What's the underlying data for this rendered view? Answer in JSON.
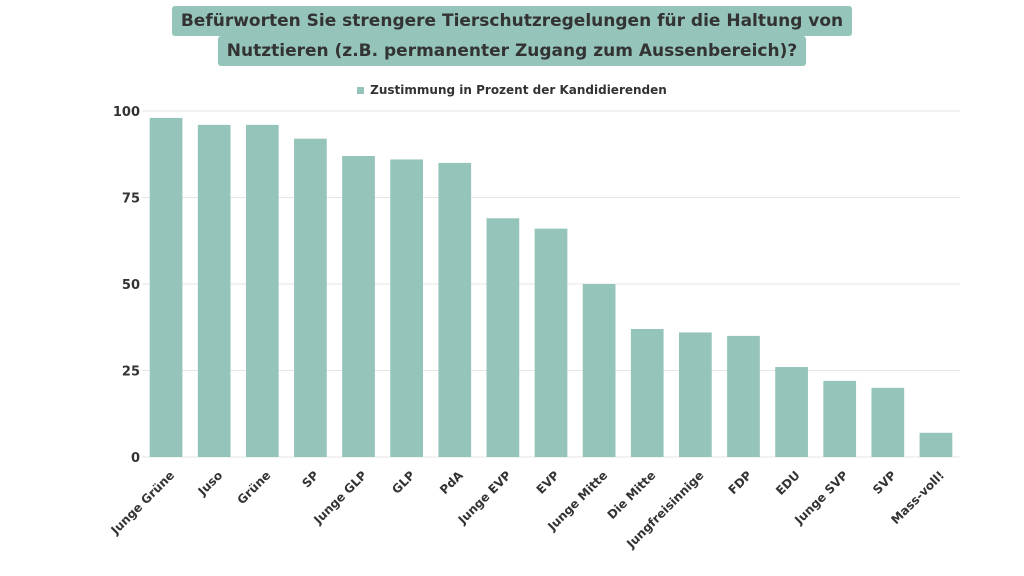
{
  "chart_data": {
    "type": "bar",
    "title_lines": [
      "Befürworten Sie strengere Tierschutzregelungen für die Haltung von",
      "Nutztieren (z.B. permanenter Zugang zum Aussenbereich)?"
    ],
    "legend": {
      "label": "Zustimmung in Prozent der Kandidierenden",
      "placement": "top-center"
    },
    "categories": [
      "Junge Grüne",
      "Juso",
      "Grüne",
      "SP",
      "Junge GLP",
      "GLP",
      "PdA",
      "Junge EVP",
      "EVP",
      "Junge Mitte",
      "Die Mitte",
      "Jungfreisinnige",
      "FDP",
      "EDU",
      "Junge SVP",
      "SVP",
      "Mass-voll!"
    ],
    "series": [
      {
        "name": "Zustimmung in Prozent der Kandidierenden",
        "values": [
          98,
          96,
          96,
          92,
          87,
          86,
          85,
          69,
          66,
          50,
          37,
          36,
          35,
          26,
          22,
          20,
          7
        ]
      }
    ],
    "yticks": [
      0,
      25,
      50,
      75,
      100
    ],
    "ylim": [
      0,
      100
    ],
    "grid": true,
    "bar_color": "#95c4bb",
    "grid_color": "#e6e6e6"
  }
}
